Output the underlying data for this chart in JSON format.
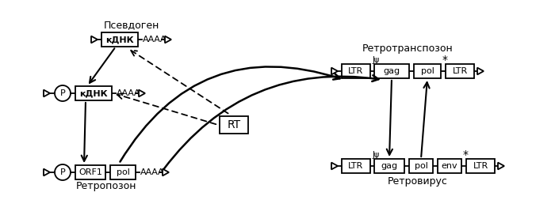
{
  "bg_color": "#ffffff",
  "title_pseudogen": "Псевдоген",
  "title_retrotransposon": "Ретротранспозон",
  "title_retropozon": "Ретропозон",
  "title_retrovirus": "Ретровирус",
  "label_RT": "RT",
  "label_kdnk": "кДНК",
  "label_P": "P",
  "label_ORF1": "ORF1",
  "label_pol": "pol",
  "label_gag": "gag",
  "label_LTR": "LTR",
  "label_env": "env",
  "label_AAAA": "АААА",
  "label_J_psi": "Jψ",
  "label_star": "*",
  "figw": 7.0,
  "figh": 2.72,
  "dpi": 100
}
